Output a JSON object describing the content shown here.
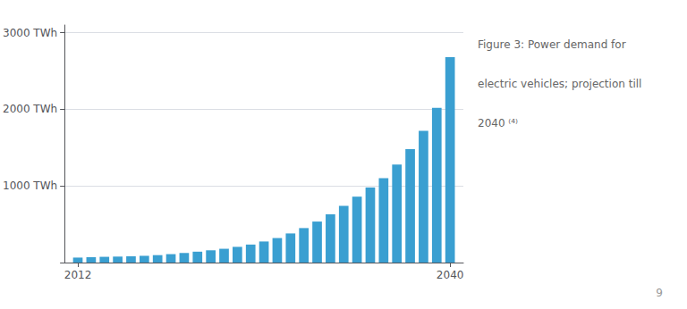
{
  "chart_data": {
    "type": "bar",
    "title": "Figure 3: Power demand for\nelectric vehicles; projection till\n2040 ⁽⁴⁾",
    "x": [
      2012,
      2013,
      2014,
      2015,
      2016,
      2017,
      2018,
      2019,
      2020,
      2021,
      2022,
      2023,
      2024,
      2025,
      2026,
      2027,
      2028,
      2029,
      2030,
      2031,
      2032,
      2033,
      2034,
      2035,
      2036,
      2037,
      2038,
      2039,
      2040
    ],
    "values": [
      65,
      70,
      75,
      78,
      82,
      88,
      97,
      110,
      125,
      142,
      160,
      180,
      205,
      235,
      275,
      320,
      380,
      450,
      535,
      630,
      740,
      860,
      980,
      1100,
      1280,
      1480,
      1720,
      2020,
      2680
    ],
    "color": "#3a9fd1",
    "xlim": [
      2011,
      2041
    ],
    "xticks": [
      2012,
      2040
    ],
    "ylim": [
      0,
      3100
    ],
    "yticks": [
      {
        "value": 0,
        "label": ""
      },
      {
        "value": 1000,
        "label": "1000 TWh"
      },
      {
        "value": 2000,
        "label": "2000 TWh"
      },
      {
        "value": 3000,
        "label": "3000 TWh"
      }
    ],
    "grid": true,
    "annotations": [
      "9"
    ]
  }
}
